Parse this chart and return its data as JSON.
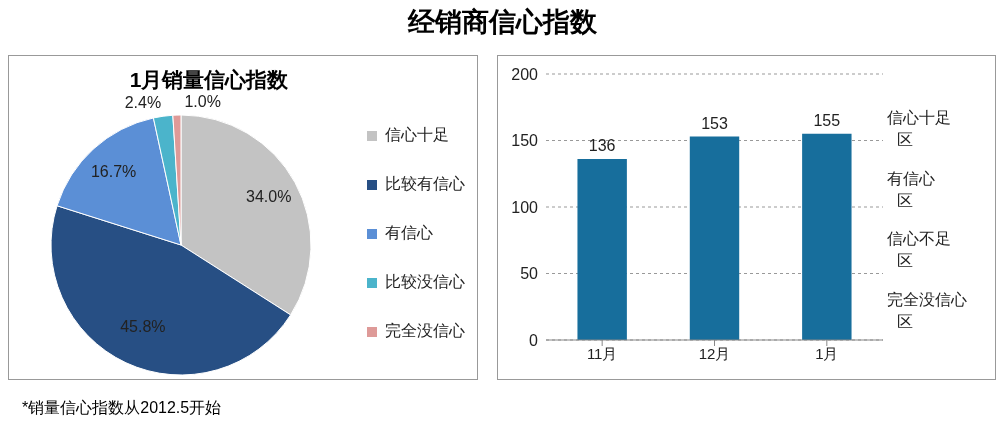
{
  "chart_data": [
    {
      "type": "pie",
      "title": "经销商信心指数",
      "subtitle": "1月销量信心指数",
      "categories": [
        "信心十足",
        "比较有信心",
        "有信心",
        "比较没信心",
        "完全没信心"
      ],
      "values": [
        34.0,
        45.8,
        16.7,
        2.4,
        1.0
      ],
      "colors": [
        "#c3c3c3",
        "#274f84",
        "#5b8fd6",
        "#4bb4cb",
        "#de9a98"
      ],
      "value_labels": [
        "34.0%",
        "45.8%",
        "16.7%",
        "2.4%",
        "1.0%"
      ],
      "legend": "right",
      "annotations": [
        "*销量信心指数从2012.5开始"
      ]
    },
    {
      "type": "bar",
      "categories": [
        "11月",
        "12月",
        "1月"
      ],
      "values": [
        136,
        153,
        155
      ],
      "color": "#176e9c",
      "ylim": [
        0,
        200
      ],
      "yticks": [
        0,
        50,
        100,
        150,
        200
      ],
      "grid": "y",
      "data_labels": true,
      "annotations": [
        "信心十足区",
        "有信心区",
        "信心不足区",
        "完全没信心区"
      ]
    }
  ]
}
